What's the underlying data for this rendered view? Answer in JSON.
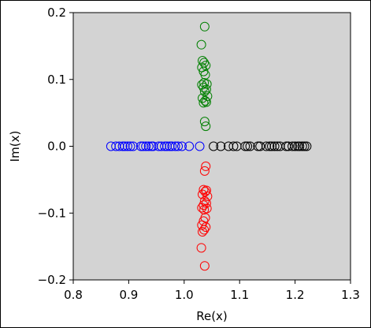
{
  "chart_data": {
    "type": "scatter",
    "title": "",
    "xlabel": "Re(x)",
    "ylabel": "Im(x)",
    "xlim": [
      0.8,
      1.3
    ],
    "ylim": [
      -0.2,
      0.2
    ],
    "xticks": [
      "0.8",
      "0.9",
      "1.0",
      "1.1",
      "1.2",
      "1.3"
    ],
    "yticks": [
      "−0.2",
      "−0.1",
      "0.0",
      "0.1",
      "0.2"
    ],
    "background": "#d3d3d3",
    "grid": false,
    "legend": "none",
    "marker": "open-circle",
    "series": [
      {
        "color": "#008000",
        "x": [
          1.037,
          1.031,
          1.033,
          1.036,
          1.039,
          1.032,
          1.035,
          1.038,
          1.036,
          1.041,
          1.032,
          1.035,
          1.04,
          1.037,
          1.042,
          1.033,
          1.038,
          1.035,
          1.04,
          1.037,
          1.039
        ],
        "y": [
          0.179,
          0.152,
          0.128,
          0.125,
          0.121,
          0.118,
          0.112,
          0.107,
          0.095,
          0.093,
          0.092,
          0.088,
          0.085,
          0.082,
          0.075,
          0.072,
          0.068,
          0.065,
          0.066,
          0.037,
          0.03
        ]
      },
      {
        "color": "#ff0000",
        "x": [
          1.037,
          1.031,
          1.033,
          1.036,
          1.039,
          1.032,
          1.035,
          1.038,
          1.036,
          1.041,
          1.032,
          1.035,
          1.04,
          1.037,
          1.042,
          1.033,
          1.038,
          1.035,
          1.04,
          1.037,
          1.039
        ],
        "y": [
          -0.179,
          -0.152,
          -0.128,
          -0.125,
          -0.121,
          -0.118,
          -0.112,
          -0.107,
          -0.095,
          -0.093,
          -0.092,
          -0.088,
          -0.085,
          -0.082,
          -0.075,
          -0.072,
          -0.068,
          -0.065,
          -0.066,
          -0.037,
          -0.03
        ]
      },
      {
        "color": "#0000ff",
        "x": [
          0.868,
          0.877,
          0.883,
          0.889,
          0.893,
          0.898,
          0.903,
          0.908,
          0.922,
          0.926,
          0.931,
          0.936,
          0.941,
          0.944,
          0.954,
          0.959,
          0.965,
          0.969,
          0.974,
          0.978,
          0.984,
          0.989,
          0.996,
          1.009,
          1.028
        ],
        "y": [
          0,
          0,
          0,
          0,
          0,
          0,
          0,
          0,
          0,
          0,
          0,
          0,
          0,
          0,
          0,
          0,
          0,
          0,
          0,
          0,
          0,
          0,
          0,
          0,
          0
        ]
      },
      {
        "color": "#000000",
        "x": [
          1.053,
          1.066,
          1.08,
          1.089,
          1.095,
          1.11,
          1.114,
          1.119,
          1.133,
          1.137,
          1.148,
          1.154,
          1.158,
          1.163,
          1.168,
          1.173,
          1.184,
          1.188,
          1.195,
          1.2,
          1.205,
          1.208,
          1.213,
          1.217,
          1.221
        ],
        "y": [
          0,
          0,
          0,
          0,
          0,
          0,
          0,
          0,
          0,
          0,
          0,
          0,
          0,
          0,
          0,
          0,
          0,
          0,
          0,
          0,
          0,
          0,
          0,
          0,
          0
        ]
      }
    ]
  }
}
